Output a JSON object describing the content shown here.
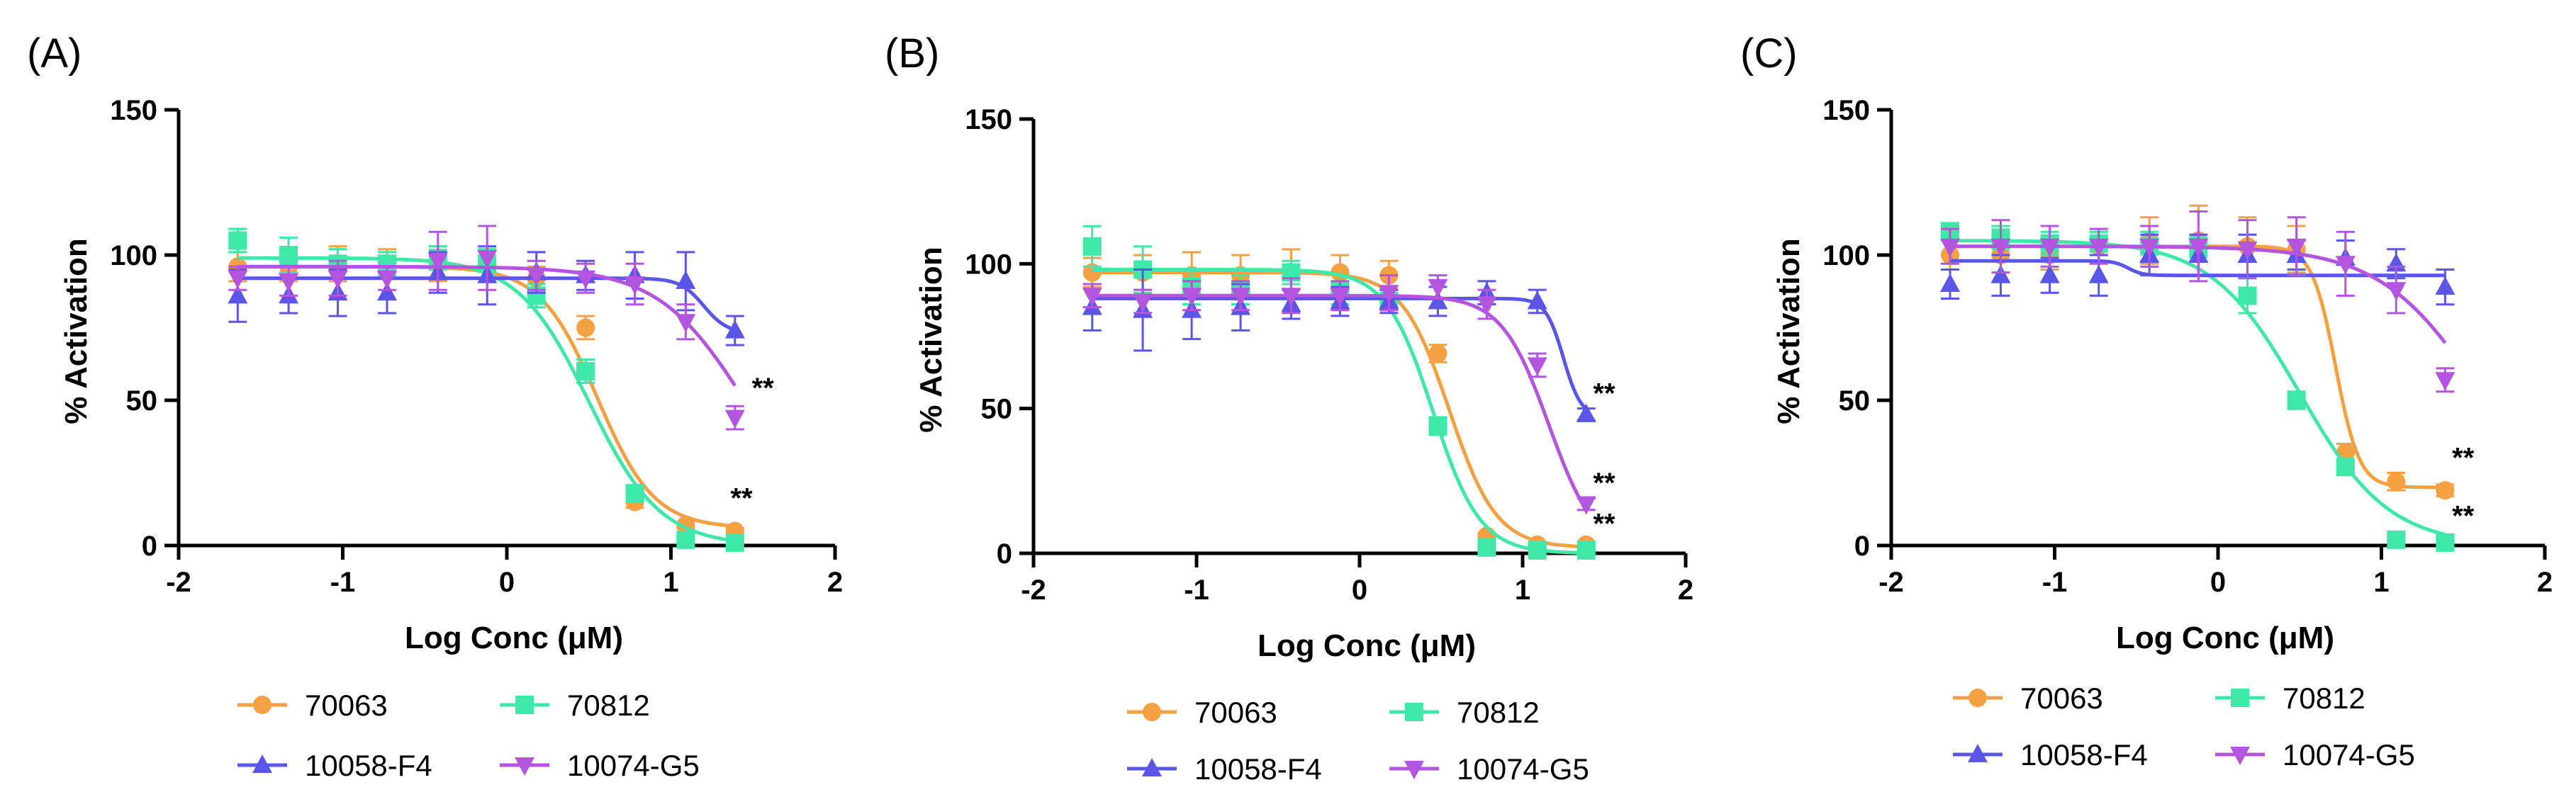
{
  "colors": {
    "70063": "#F5A042",
    "70812": "#3FE8A8",
    "10058-F4": "#5B55E8",
    "10074-G5": "#B455E0",
    "axis": "#000000"
  },
  "chart_data": [
    {
      "type": "line",
      "panel_label": "(A)",
      "xlabel": "Log Conc (μM)",
      "ylabel": "% Activation",
      "xlim": [
        -2,
        2
      ],
      "ylim": [
        0,
        150
      ],
      "xticks": [
        -2,
        -1,
        0,
        1,
        2
      ],
      "yticks": [
        0,
        50,
        100,
        150
      ],
      "x": [
        -1.64,
        -1.33,
        -1.03,
        -0.73,
        -0.42,
        -0.12,
        0.18,
        0.48,
        0.78,
        1.09,
        1.39
      ],
      "series": [
        {
          "name": "70063",
          "marker": "circle",
          "values": [
            96,
            96,
            97,
            97,
            97,
            97,
            92,
            75,
            15,
            7,
            5
          ],
          "errors": [
            5,
            5,
            6,
            5,
            6,
            5,
            4,
            4,
            2,
            1,
            1
          ],
          "fit": {
            "top": 96,
            "bottom": 6,
            "logec50": 0.55,
            "hill": 2.5
          }
        },
        {
          "name": "70812",
          "marker": "square",
          "values": [
            105,
            100,
            97,
            97,
            99,
            97,
            86,
            60,
            18,
            2,
            1
          ],
          "errors": [
            4,
            6,
            5,
            4,
            4,
            5,
            4,
            4,
            2,
            1,
            1
          ],
          "fit": {
            "top": 99,
            "bottom": 0,
            "logec50": 0.5,
            "hill": 2.0
          }
        },
        {
          "name": "10058-F4",
          "marker": "triangle-up",
          "values": [
            86,
            86,
            87,
            87,
            94,
            93,
            94,
            93,
            93,
            91,
            74
          ],
          "errors": [
            9,
            6,
            8,
            7,
            7,
            10,
            7,
            5,
            8,
            10,
            5
          ],
          "fit": {
            "top": 92,
            "bottom": 73,
            "logec50": 1.2,
            "hill": 6
          }
        },
        {
          "name": "10074-G5",
          "marker": "triangle-down",
          "values": [
            92,
            91,
            92,
            92,
            98,
            99,
            93,
            92,
            90,
            77,
            44
          ],
          "errors": [
            4,
            5,
            6,
            4,
            10,
            11,
            5,
            5,
            7,
            6,
            4
          ],
          "fit": {
            "top": 96,
            "bottom": 0,
            "logec50": 1.47,
            "hill": 1.6
          }
        }
      ],
      "annotations": [
        {
          "text": "**",
          "x": 1.56,
          "y": 51
        },
        {
          "text": "**",
          "x": 1.43,
          "y": 13
        }
      ]
    },
    {
      "type": "line",
      "panel_label": "(B)",
      "xlabel": "Log Conc (μM)",
      "ylabel": "% Activation",
      "xlim": [
        -2,
        2
      ],
      "ylim": [
        0,
        150
      ],
      "xticks": [
        -2,
        -1,
        0,
        1,
        2
      ],
      "yticks": [
        0,
        50,
        100,
        150
      ],
      "x": [
        -1.64,
        -1.33,
        -1.03,
        -0.73,
        -0.42,
        -0.12,
        0.18,
        0.48,
        0.78,
        1.09,
        1.39
      ],
      "series": [
        {
          "name": "70063",
          "marker": "circle",
          "values": [
            97,
            97,
            96,
            96,
            97,
            97,
            96,
            69,
            6,
            3,
            3
          ],
          "errors": [
            5,
            6,
            8,
            7,
            8,
            6,
            5,
            3,
            1,
            1,
            1
          ],
          "fit": {
            "top": 97,
            "bottom": 2,
            "logec50": 0.55,
            "hill": 3
          }
        },
        {
          "name": "70812",
          "marker": "square",
          "values": [
            106,
            98,
            92,
            91,
            97,
            91,
            87,
            44,
            2,
            1,
            1
          ],
          "errors": [
            7,
            8,
            6,
            5,
            4,
            5,
            3,
            3,
            1,
            1,
            1
          ],
          "fit": {
            "top": 98,
            "bottom": 0,
            "logec50": 0.45,
            "hill": 3
          }
        },
        {
          "name": "10058-F4",
          "marker": "triangle-up",
          "values": [
            85,
            84,
            84,
            85,
            86,
            87,
            87,
            87,
            90,
            87,
            48
          ],
          "errors": [
            8,
            14,
            10,
            8,
            5,
            5,
            4,
            5,
            4,
            4,
            2
          ],
          "fit": {
            "top": 88,
            "bottom": 47,
            "logec50": 1.25,
            "hill": 8
          }
        },
        {
          "name": "10074-G5",
          "marker": "triangle-down",
          "values": [
            89,
            87,
            89,
            89,
            89,
            89,
            90,
            92,
            86,
            65,
            17
          ],
          "errors": [
            4,
            4,
            5,
            5,
            6,
            5,
            6,
            4,
            5,
            4,
            2
          ],
          "fit": {
            "top": 89,
            "bottom": 0,
            "logec50": 1.16,
            "hill": 3
          }
        }
      ],
      "annotations": [
        {
          "text": "**",
          "x": 1.5,
          "y": 52
        },
        {
          "text": "**",
          "x": 1.5,
          "y": 21
        },
        {
          "text": "**",
          "x": 1.5,
          "y": 7
        }
      ]
    },
    {
      "type": "line",
      "panel_label": "(C)",
      "xlabel": "Log Conc (μM)",
      "ylabel": "% Activation",
      "xlim": [
        -2,
        2
      ],
      "ylim": [
        0,
        150
      ],
      "xticks": [
        -2,
        -1,
        0,
        1,
        2
      ],
      "yticks": [
        0,
        50,
        100,
        150
      ],
      "x": [
        -1.64,
        -1.33,
        -1.03,
        -0.73,
        -0.42,
        -0.12,
        0.18,
        0.48,
        0.78,
        1.09,
        1.39
      ],
      "series": [
        {
          "name": "70063",
          "marker": "circle",
          "values": [
            100,
            100,
            100,
            103,
            105,
            105,
            103,
            102,
            32,
            22,
            19
          ],
          "errors": [
            5,
            6,
            5,
            5,
            8,
            12,
            10,
            8,
            3,
            3,
            2
          ],
          "fit": {
            "top": 103,
            "bottom": 20,
            "logec50": 0.72,
            "hill": 6
          }
        },
        {
          "name": "70812",
          "marker": "square",
          "values": [
            108,
            106,
            104,
            104,
            103,
            102,
            86,
            50,
            27,
            2,
            1
          ],
          "errors": [
            3,
            4,
            4,
            4,
            5,
            4,
            6,
            3,
            2,
            1,
            1
          ],
          "fit": {
            "top": 105,
            "bottom": 0,
            "logec50": 0.5,
            "hill": 1.6
          }
        },
        {
          "name": "10058-F4",
          "marker": "triangle-up",
          "values": [
            90,
            93,
            93,
            93,
            100,
            100,
            100,
            100,
            99,
            97,
            89
          ],
          "errors": [
            5,
            7,
            6,
            7,
            7,
            7,
            7,
            5,
            6,
            5,
            6
          ],
          "fit": {
            "top": 98,
            "bottom": 93,
            "logec50": -0.55,
            "hill": 10
          }
        },
        {
          "name": "10074-G5",
          "marker": "triangle-down",
          "values": [
            103,
            103,
            103,
            103,
            103,
            103,
            102,
            103,
            97,
            88,
            57
          ],
          "errors": [
            6,
            9,
            7,
            6,
            7,
            12,
            10,
            10,
            11,
            8,
            4
          ],
          "fit": {
            "top": 103,
            "bottom": 0,
            "logec50": 1.62,
            "hill": 1.4
          }
        }
      ],
      "annotations": [
        {
          "text": "**",
          "x": 1.5,
          "y": 27
        },
        {
          "text": "**",
          "x": 1.5,
          "y": 7
        }
      ]
    }
  ]
}
